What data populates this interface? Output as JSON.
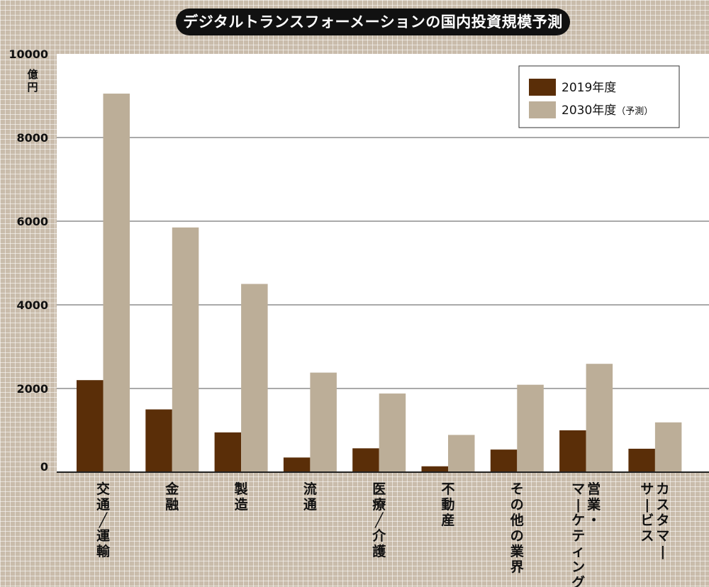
{
  "chart_data": {
    "type": "bar",
    "title": "デジタルトランスフォーメーションの国内投資規模予測",
    "unit": "億円",
    "ylim": [
      0,
      10000
    ],
    "yticks": [
      "0",
      "2000",
      "4000",
      "6000",
      "8000",
      "10000"
    ],
    "grid": true,
    "legend_position": "top-right",
    "categories": [
      [
        "交通／運輸"
      ],
      [
        "金融"
      ],
      [
        "製造"
      ],
      [
        "流通"
      ],
      [
        "医療／介護"
      ],
      [
        "不動産"
      ],
      [
        "その他の業界"
      ],
      [
        "営業・",
        "マーケティング"
      ],
      [
        "カスタマー",
        "サービス"
      ]
    ],
    "series": [
      {
        "name": "2019年度",
        "color": "#5a2e08",
        "values": [
          2200,
          1500,
          950,
          350,
          570,
          140,
          540,
          1000,
          560
        ]
      },
      {
        "name": "2030年度",
        "name_suffix": "（予測）",
        "color": "#bcae98",
        "values": [
          9050,
          5850,
          4500,
          2380,
          1880,
          890,
          2090,
          2590,
          1190
        ]
      }
    ]
  }
}
